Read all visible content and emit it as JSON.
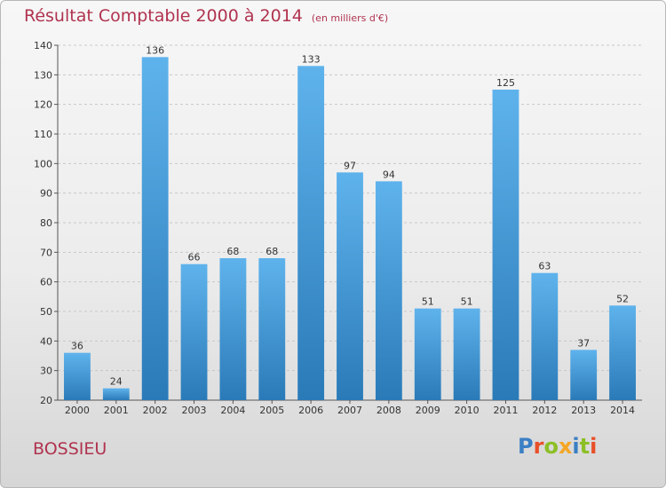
{
  "header": {
    "title": "Résultat Comptable 2000 à 2014",
    "subtitle": "(en milliers d'€)"
  },
  "footer": {
    "place": "BOSSIEU",
    "logo": "Proxiti"
  },
  "colors": {
    "title": "#b0334f",
    "bar_top": "#5fb3ec",
    "bar_bottom": "#2a7ab8",
    "logo_letters": [
      "#3b7fc4",
      "#e8502a",
      "#8cbf26",
      "#f5a623",
      "#3b7fc4",
      "#8cbf26",
      "#e8502a"
    ]
  },
  "chart_data": {
    "type": "bar",
    "categories": [
      "2000",
      "2001",
      "2002",
      "2003",
      "2004",
      "2005",
      "2006",
      "2007",
      "2008",
      "2009",
      "2010",
      "2011",
      "2012",
      "2013",
      "2014"
    ],
    "values": [
      36,
      24,
      136,
      66,
      68,
      68,
      133,
      97,
      94,
      51,
      51,
      125,
      63,
      37,
      52
    ],
    "ylim": [
      20,
      140
    ],
    "yticks": [
      20,
      30,
      40,
      50,
      60,
      70,
      80,
      90,
      100,
      110,
      120,
      130,
      140
    ],
    "grid": true,
    "data_labels": true
  }
}
